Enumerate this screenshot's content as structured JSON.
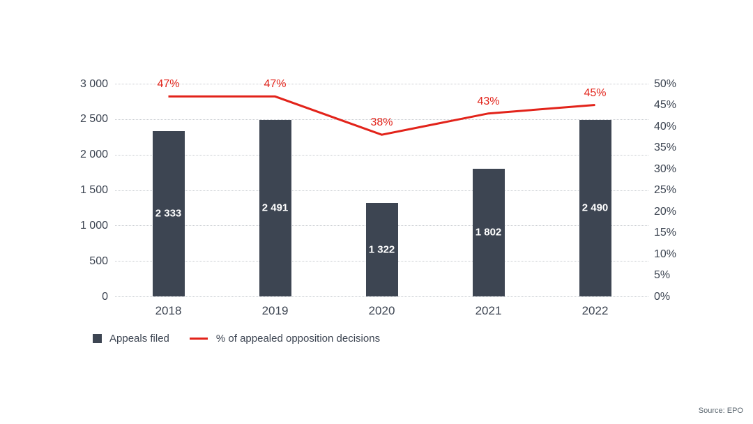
{
  "chart_data": {
    "type": "bar",
    "subtype": "combo-bar-line",
    "categories": [
      "2018",
      "2019",
      "2020",
      "2021",
      "2022"
    ],
    "series": [
      {
        "name": "Appeals filed",
        "type": "bar",
        "axis": "left",
        "values": [
          2333,
          2491,
          1322,
          1802,
          2490
        ],
        "labels": [
          "2 333",
          "2 491",
          "1 322",
          "1 802",
          "2 490"
        ],
        "color": "#3d4552"
      },
      {
        "name": "% of appealed opposition decisions",
        "type": "line",
        "axis": "right",
        "values": [
          47,
          47,
          38,
          43,
          45
        ],
        "labels": [
          "47%",
          "47%",
          "38%",
          "43%",
          "45%"
        ],
        "color": "#e2231a"
      }
    ],
    "title": "",
    "xlabel": "",
    "ylabel": "",
    "left_axis": {
      "min": 0,
      "max": 3000,
      "step": 500,
      "tick_labels": [
        "0",
        "500",
        "1 000",
        "1 500",
        "2 000",
        "2 500",
        "3 000"
      ]
    },
    "right_axis": {
      "min": 0,
      "max": 50,
      "step": 5,
      "tick_labels": [
        "0%",
        "5%",
        "10%",
        "15%",
        "20%",
        "25%",
        "30%",
        "35%",
        "40%",
        "45%",
        "50%"
      ]
    },
    "grid": "horizontal dotted at left-axis ticks",
    "legend_position": "bottom-left"
  },
  "legend": {
    "bar_label": "Appeals filed",
    "line_label": "% of appealed opposition decisions"
  },
  "source": {
    "label": "Source: EPO"
  },
  "colors": {
    "background": "#ffffff",
    "bar": "#3d4552",
    "line": "#e2231a",
    "grid": "#c7cacf",
    "axis_text": "#3d4552",
    "bar_value_text": "#ffffff",
    "source_text": "#5c6770"
  }
}
